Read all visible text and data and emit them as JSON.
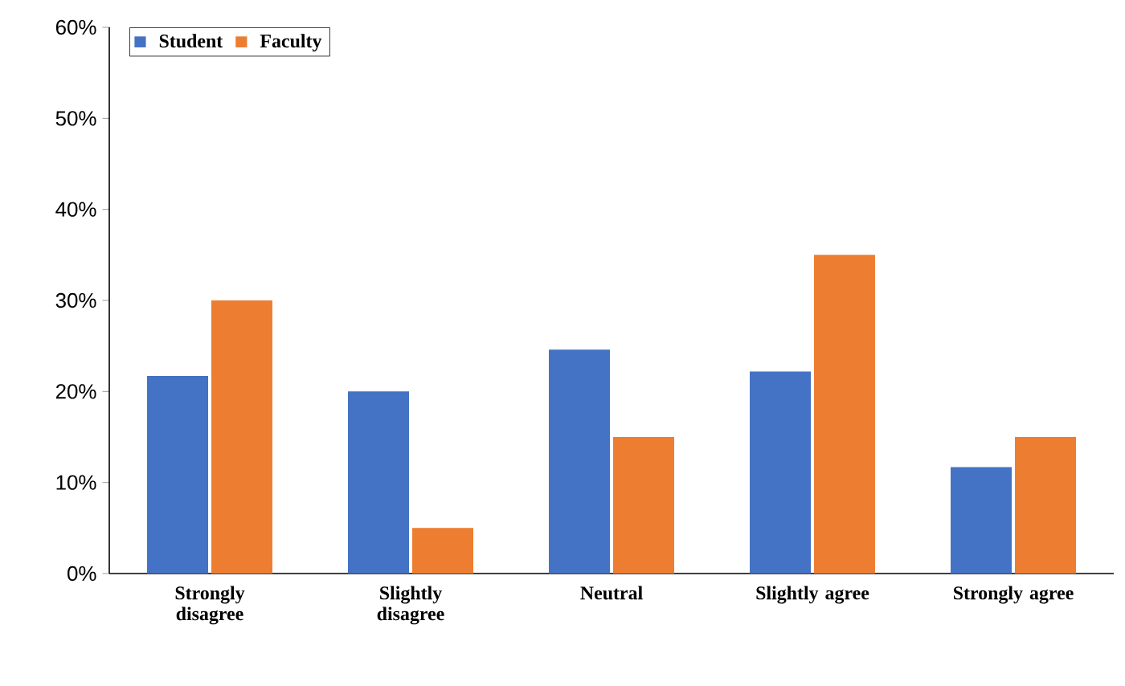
{
  "chart_data": {
    "type": "bar",
    "categories": [
      "Strongly disagree",
      "Slightly disagree",
      "Neutral",
      "Slightly agree",
      "Strongly agree"
    ],
    "series": [
      {
        "name": "Student",
        "color": "#4472c4",
        "values": [
          21.7,
          20,
          24.6,
          22.2,
          11.7
        ]
      },
      {
        "name": "Faculty",
        "color": "#ed7d31",
        "values": [
          30,
          5,
          15,
          35,
          15
        ]
      }
    ],
    "ylim": [
      0,
      60
    ],
    "yticks": [
      {
        "value": 0,
        "label": "0%"
      },
      {
        "value": 10,
        "label": "10%"
      },
      {
        "value": 20,
        "label": "20%"
      },
      {
        "value": 30,
        "label": "30%"
      },
      {
        "value": 40,
        "label": "40%"
      },
      {
        "value": 50,
        "label": "50%"
      },
      {
        "value": 60,
        "label": "60%"
      }
    ],
    "legend": "top left"
  }
}
